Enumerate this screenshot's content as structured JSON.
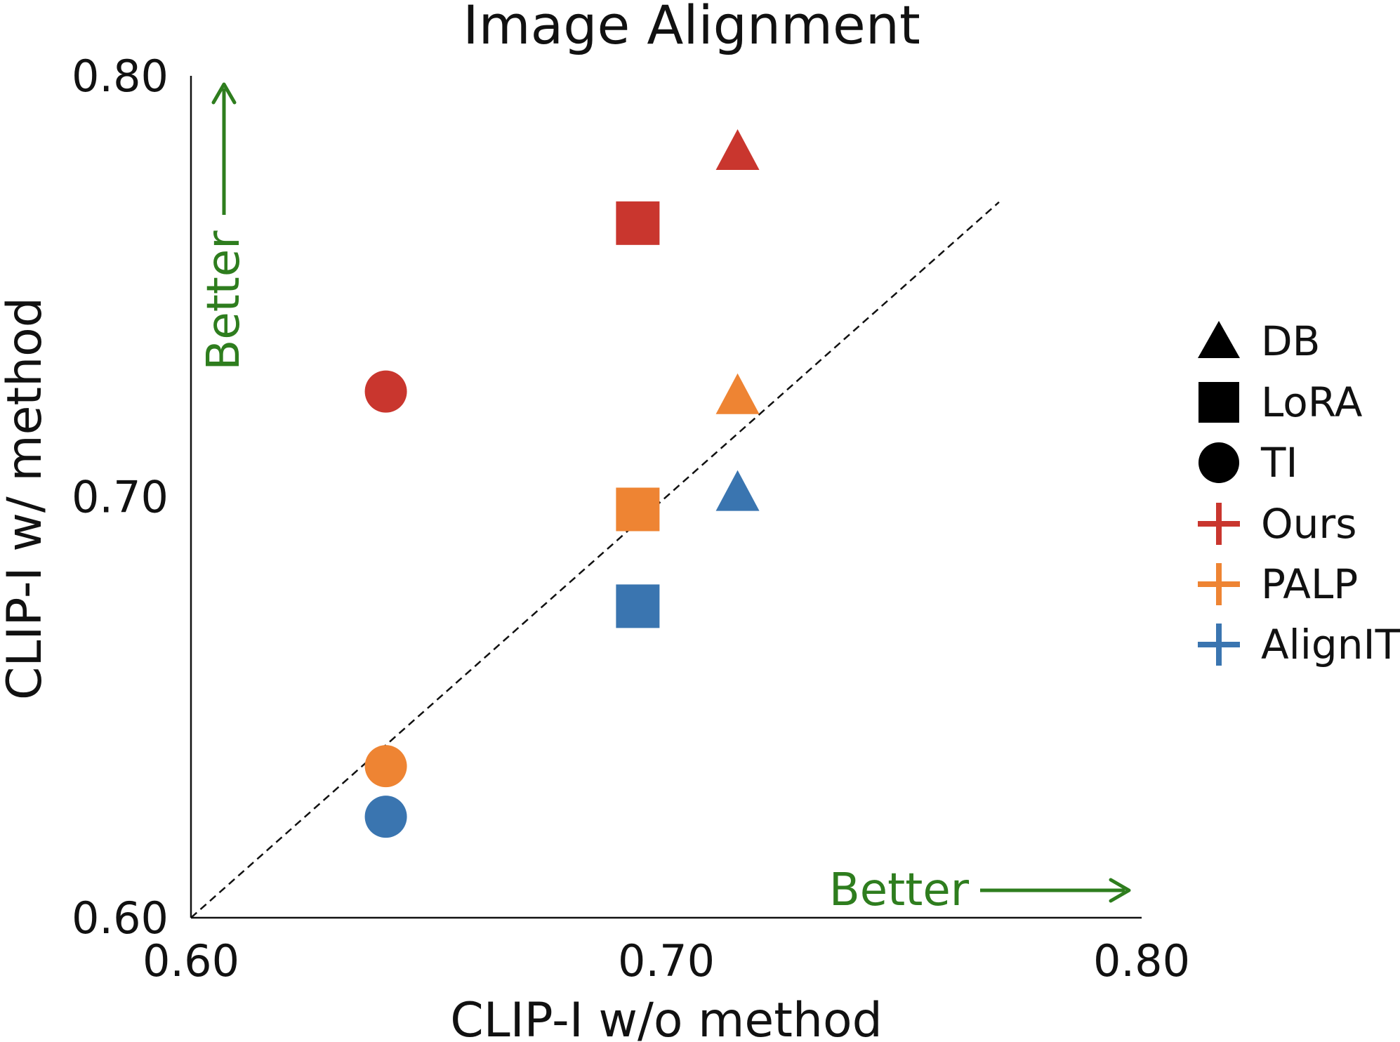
{
  "chart_data": {
    "type": "scatter",
    "title": "Image Alignment",
    "xlabel": "CLIP-I w/o method",
    "ylabel": "CLIP-I w/ method",
    "xlim": [
      0.6,
      0.8
    ],
    "ylim": [
      0.6,
      0.8
    ],
    "xticks": [
      "0.60",
      "0.70",
      "0.80"
    ],
    "yticks": [
      "0.60",
      "0.70",
      "0.80"
    ],
    "grid": false,
    "legend_position": "right",
    "reference_line": {
      "type": "diagonal",
      "style": "dashed",
      "from": [
        0.6,
        0.6
      ],
      "to": [
        0.77,
        0.77
      ]
    },
    "annotations": [
      {
        "text": "Better",
        "direction": "up",
        "color": "#2e7d1e"
      },
      {
        "text": "Better",
        "direction": "right",
        "color": "#2e7d1e"
      }
    ],
    "marker_legend": [
      {
        "label": "DB",
        "shape": "triangle"
      },
      {
        "label": "LoRA",
        "shape": "square"
      },
      {
        "label": "TI",
        "shape": "circle"
      }
    ],
    "color_legend": [
      {
        "label": "Ours",
        "color": "#c9362e"
      },
      {
        "label": "PALP",
        "color": "#ee8433"
      },
      {
        "label": "AlignIT",
        "color": "#3a75b0"
      }
    ],
    "points": [
      {
        "shape": "triangle",
        "color": "#c9362e",
        "x": 0.715,
        "y": 0.782
      },
      {
        "shape": "square",
        "color": "#c9362e",
        "x": 0.694,
        "y": 0.765
      },
      {
        "shape": "circle",
        "color": "#c9362e",
        "x": 0.641,
        "y": 0.725
      },
      {
        "shape": "triangle",
        "color": "#ee8433",
        "x": 0.715,
        "y": 0.724
      },
      {
        "shape": "square",
        "color": "#ee8433",
        "x": 0.694,
        "y": 0.697
      },
      {
        "shape": "circle",
        "color": "#ee8433",
        "x": 0.641,
        "y": 0.636
      },
      {
        "shape": "triangle",
        "color": "#3a75b0",
        "x": 0.715,
        "y": 0.701
      },
      {
        "shape": "square",
        "color": "#3a75b0",
        "x": 0.694,
        "y": 0.674
      },
      {
        "shape": "circle",
        "color": "#3a75b0",
        "x": 0.641,
        "y": 0.624
      }
    ]
  }
}
